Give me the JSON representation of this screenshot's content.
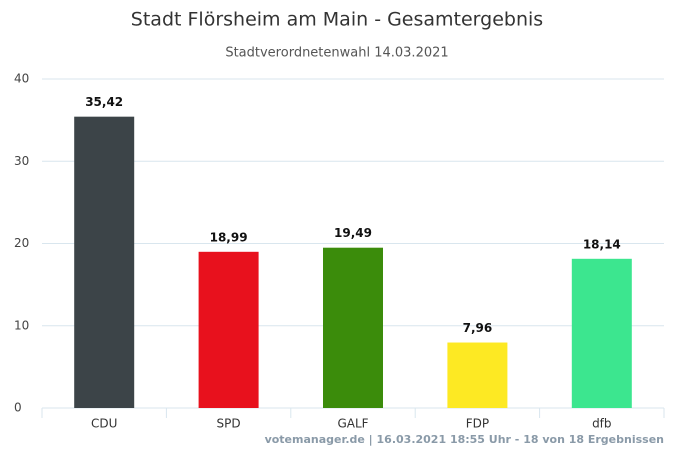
{
  "chart_data": {
    "type": "bar",
    "title": "Stadt Flörsheim am Main - Gesamtergebnis",
    "subtitle": "Stadtverordnetenwahl 14.03.2021",
    "categories": [
      "CDU",
      "SPD",
      "GALF",
      "FDP",
      "dfb"
    ],
    "values": [
      35.42,
      18.99,
      19.49,
      7.96,
      18.14
    ],
    "value_labels": [
      "35,42",
      "18,99",
      "19,49",
      "7,96",
      "18,14"
    ],
    "colors": [
      "#3c4448",
      "#e8111d",
      "#3b8c0b",
      "#fde923",
      "#3ce68f"
    ],
    "ylim": [
      0,
      40
    ],
    "yticks": [
      0,
      10,
      20,
      30,
      40
    ],
    "grid": true,
    "footer": "votemanager.de | 16.03.2021 18:55 Uhr - 18 von 18 Ergebnissen"
  }
}
